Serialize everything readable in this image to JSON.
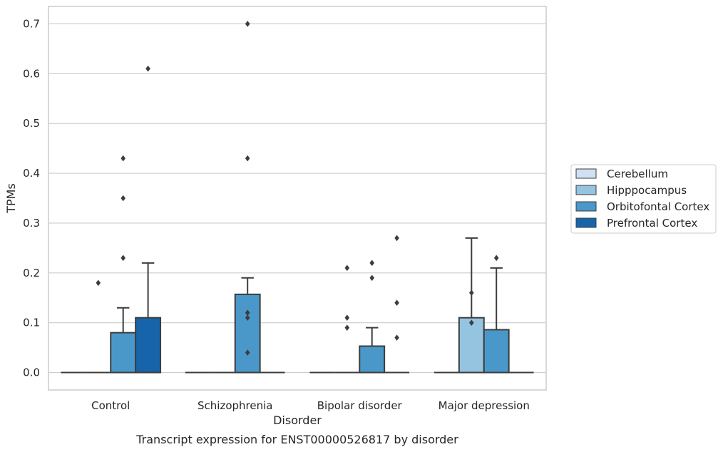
{
  "chart_data": {
    "type": "box",
    "caption": "Transcript expression for ENST00000526817 by disorder",
    "xlabel": "Disorder",
    "ylabel": "TPMs",
    "ylim": [
      -0.035,
      0.735
    ],
    "yticks": [
      0.0,
      0.1,
      0.2,
      0.3,
      0.4,
      0.5,
      0.6,
      0.7
    ],
    "ytick_labels": [
      "0.0",
      "0.1",
      "0.2",
      "0.3",
      "0.4",
      "0.5",
      "0.6",
      "0.7"
    ],
    "grid": "horizontal",
    "legend_position": "right",
    "categories": [
      "Control",
      "Schizophrenia",
      "Bipolar disorder",
      "Major depression"
    ],
    "series": [
      {
        "name": "Cerebellum",
        "color": "#d0e1f2",
        "boxes": [
          {
            "q1": 0,
            "median": 0,
            "q3": 0,
            "whisker_low": 0,
            "whisker_high": 0,
            "outliers": []
          },
          {
            "q1": 0,
            "median": 0,
            "q3": 0,
            "whisker_low": 0,
            "whisker_high": 0,
            "outliers": []
          },
          {
            "q1": 0,
            "median": 0,
            "q3": 0,
            "whisker_low": 0,
            "whisker_high": 0,
            "outliers": []
          },
          {
            "q1": 0,
            "median": 0,
            "q3": 0,
            "whisker_low": 0,
            "whisker_high": 0,
            "outliers": []
          }
        ]
      },
      {
        "name": "Hipppocampus",
        "color": "#94c4df",
        "boxes": [
          {
            "q1": 0,
            "median": 0,
            "q3": 0,
            "whisker_low": 0,
            "whisker_high": 0,
            "outliers": [
              0.18
            ]
          },
          {
            "q1": 0,
            "median": 0,
            "q3": 0,
            "whisker_low": 0,
            "whisker_high": 0,
            "outliers": []
          },
          {
            "q1": 0,
            "median": 0,
            "q3": 0,
            "whisker_low": 0,
            "whisker_high": 0,
            "outliers": [
              0.21,
              0.11,
              0.09
            ]
          },
          {
            "q1": 0,
            "median": 0,
            "q3": 0.11,
            "whisker_low": 0,
            "whisker_high": 0.27,
            "outliers": [
              0.16,
              0.1
            ]
          }
        ]
      },
      {
        "name": "Orbitofontal Cortex",
        "color": "#4a98c9",
        "boxes": [
          {
            "q1": 0,
            "median": 0,
            "q3": 0.08,
            "whisker_low": 0,
            "whisker_high": 0.13,
            "outliers": [
              0.43,
              0.35,
              0.23
            ]
          },
          {
            "q1": 0,
            "median": 0,
            "q3": 0.157,
            "whisker_low": 0,
            "whisker_high": 0.19,
            "outliers": [
              0.7,
              0.43,
              0.12,
              0.11,
              0.04
            ]
          },
          {
            "q1": 0,
            "median": 0,
            "q3": 0.053,
            "whisker_low": 0,
            "whisker_high": 0.09,
            "outliers": [
              0.22,
              0.19
            ]
          },
          {
            "q1": 0,
            "median": 0,
            "q3": 0.086,
            "whisker_low": 0,
            "whisker_high": 0.21,
            "outliers": [
              0.23
            ]
          }
        ]
      },
      {
        "name": "Prefrontal Cortex",
        "color": "#1764ab",
        "boxes": [
          {
            "q1": 0,
            "median": 0,
            "q3": 0.11,
            "whisker_low": 0,
            "whisker_high": 0.22,
            "outliers": [
              0.61
            ]
          },
          {
            "q1": 0,
            "median": 0,
            "q3": 0,
            "whisker_low": 0,
            "whisker_high": 0,
            "outliers": []
          },
          {
            "q1": 0,
            "median": 0,
            "q3": 0,
            "whisker_low": 0,
            "whisker_high": 0,
            "outliers": [
              0.27,
              0.14,
              0.07
            ]
          },
          {
            "q1": 0,
            "median": 0,
            "q3": 0,
            "whisker_low": 0,
            "whisker_high": 0,
            "outliers": []
          }
        ]
      }
    ]
  }
}
